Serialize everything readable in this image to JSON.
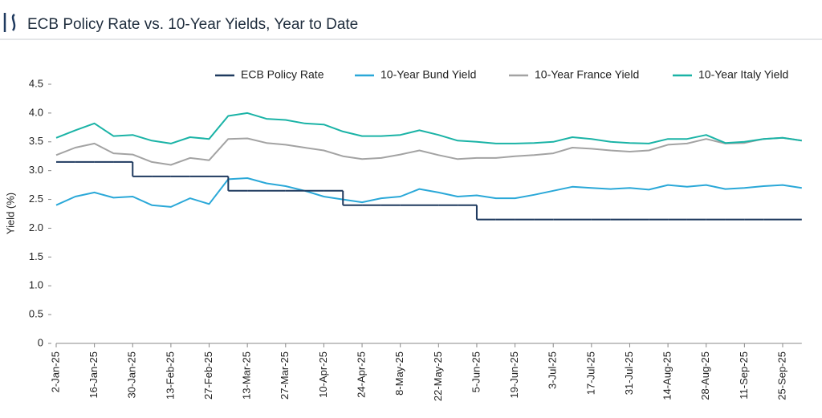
{
  "chart_data": {
    "type": "line",
    "title": "ECB Policy Rate vs. 10-Year Yields, Year to Date",
    "y_label": "Yield (%)",
    "categories": [
      "2-Jan-25",
      null,
      "16-Jan-25",
      null,
      "30-Jan-25",
      null,
      "13-Feb-25",
      null,
      "27-Feb-25",
      null,
      "13-Mar-25",
      null,
      "27-Mar-25",
      null,
      "10-Apr-25",
      null,
      "24-Apr-25",
      null,
      "8-May-25",
      null,
      "22-May-25",
      null,
      "5-Jun-25",
      null,
      "19-Jun-25",
      null,
      "3-Jul-25",
      null,
      "17-Jul-25",
      null,
      "31-Jul-25",
      null,
      "14-Aug-25",
      null,
      "28-Aug-25",
      null,
      "11-Sep-25",
      null,
      "25-Sep-25",
      null
    ],
    "series": [
      {
        "name": "ECB Policy Rate",
        "color": "#1f3a5f",
        "step": true,
        "values": [
          3.15,
          3.15,
          3.15,
          3.15,
          2.9,
          2.9,
          2.9,
          2.9,
          2.9,
          2.65,
          2.65,
          2.65,
          2.65,
          2.65,
          2.65,
          2.4,
          2.4,
          2.4,
          2.4,
          2.4,
          2.4,
          2.4,
          2.15,
          2.15,
          2.15,
          2.15,
          2.15,
          2.15,
          2.15,
          2.15,
          2.15,
          2.15,
          2.15,
          2.15,
          2.15,
          2.15,
          2.15,
          2.15,
          2.15,
          2.15
        ]
      },
      {
        "name": "10-Year Bund Yield",
        "color": "#2aa8d8",
        "values": [
          2.4,
          2.55,
          2.62,
          2.53,
          2.55,
          2.4,
          2.37,
          2.52,
          2.42,
          2.85,
          2.87,
          2.78,
          2.73,
          2.65,
          2.55,
          2.5,
          2.45,
          2.52,
          2.55,
          2.68,
          2.62,
          2.55,
          2.57,
          2.52,
          2.52,
          2.58,
          2.65,
          2.72,
          2.7,
          2.68,
          2.7,
          2.67,
          2.75,
          2.72,
          2.75,
          2.68,
          2.7,
          2.73,
          2.75,
          2.7
        ]
      },
      {
        "name": "10-Year France Yield",
        "color": "#a3a3a3",
        "values": [
          3.27,
          3.4,
          3.47,
          3.3,
          3.28,
          3.15,
          3.1,
          3.22,
          3.18,
          3.55,
          3.56,
          3.48,
          3.45,
          3.4,
          3.35,
          3.25,
          3.2,
          3.22,
          3.28,
          3.35,
          3.27,
          3.2,
          3.22,
          3.22,
          3.25,
          3.27,
          3.3,
          3.4,
          3.38,
          3.35,
          3.33,
          3.35,
          3.45,
          3.47,
          3.55,
          3.47,
          3.48,
          3.55,
          3.57,
          3.52
        ]
      },
      {
        "name": "10-Year Italy Yield",
        "color": "#1ab3a6",
        "values": [
          3.57,
          3.7,
          3.82,
          3.6,
          3.62,
          3.52,
          3.47,
          3.58,
          3.55,
          3.95,
          4.0,
          3.9,
          3.88,
          3.82,
          3.8,
          3.68,
          3.6,
          3.6,
          3.62,
          3.7,
          3.62,
          3.52,
          3.5,
          3.47,
          3.47,
          3.48,
          3.5,
          3.58,
          3.55,
          3.5,
          3.48,
          3.47,
          3.55,
          3.55,
          3.62,
          3.48,
          3.5,
          3.55,
          3.57,
          3.52
        ]
      }
    ],
    "ylim": [
      0,
      4.5
    ],
    "yticks": [
      0,
      0.5,
      {
        "value": 1,
        "label": "1.0"
      },
      1.5,
      {
        "value": 2,
        "label": "2.0"
      },
      2.5,
      {
        "value": 3,
        "label": "3.0"
      },
      3.5,
      {
        "value": 4,
        "label": "4.0"
      },
      4.5
    ],
    "grid": false
  }
}
